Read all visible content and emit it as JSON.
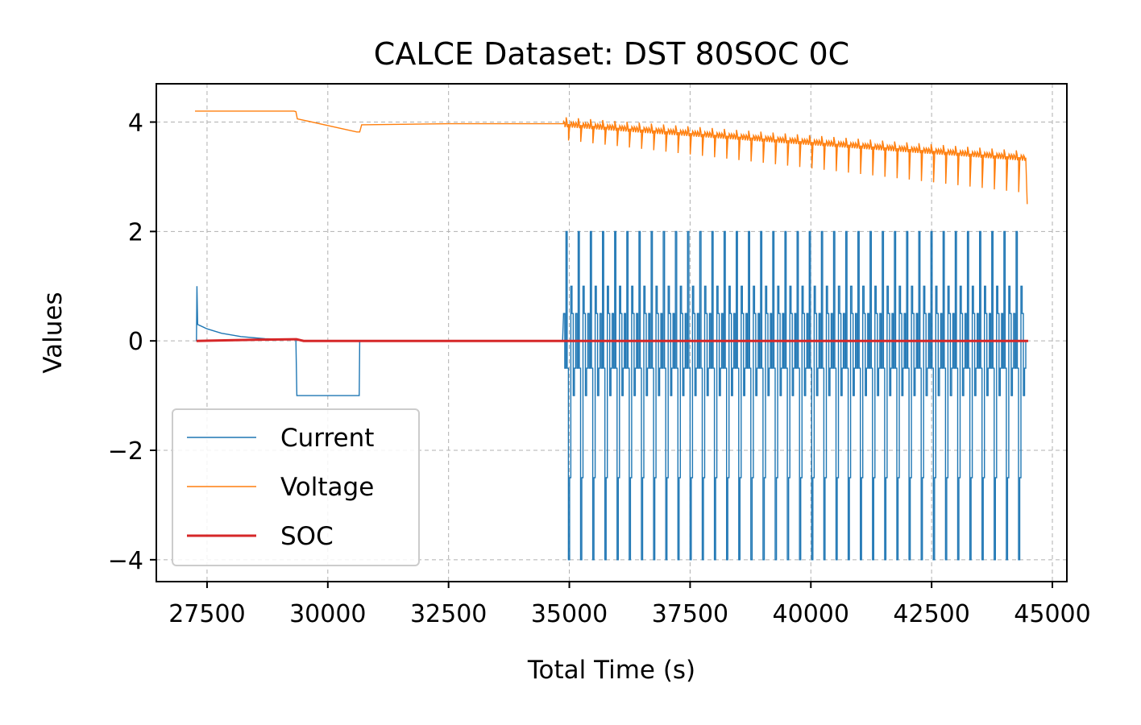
{
  "chart_data": {
    "type": "line",
    "title": "CALCE Dataset: DST 80SOC 0C",
    "xlabel": "Total Time (s)",
    "ylabel": "Values",
    "xlim": [
      26450,
      45300
    ],
    "ylim": [
      -4.3999,
      4.6999
    ],
    "x_ticks": [
      27500,
      30000,
      32500,
      35000,
      37500,
      40000,
      42500,
      45000
    ],
    "x_tick_labels": [
      "27500",
      "30000",
      "32500",
      "35000",
      "37500",
      "40000",
      "42500",
      "45000"
    ],
    "y_ticks": [
      -4,
      -2,
      0,
      2,
      4
    ],
    "y_tick_labels": [
      "−4",
      "−2",
      "0",
      "2",
      "4"
    ],
    "grid": true,
    "legend_position": "lower-left",
    "dst_start": 34880,
    "dst_end": 44450,
    "dst_cycles": 38,
    "series": [
      {
        "name": "Current",
        "color": "#1f77b4",
        "points": [
          [
            27280,
            0
          ],
          [
            27290,
            1.0
          ],
          [
            27305,
            0.3
          ],
          [
            27500,
            0.22
          ],
          [
            27800,
            0.14
          ],
          [
            28200,
            0.08
          ],
          [
            28700,
            0.04
          ],
          [
            29340,
            0.02
          ],
          [
            29360,
            -1.0
          ],
          [
            30650,
            -1.0
          ],
          [
            30660,
            0
          ],
          [
            34860,
            0
          ]
        ],
        "dst_levels": [
          0.5,
          -0.5,
          2.0,
          -0.5,
          -4.0,
          -2.5,
          1.0,
          0.5,
          -1.0,
          -0.5
        ]
      },
      {
        "name": "Voltage",
        "color": "#ff7f0e",
        "points": [
          [
            27250,
            4.2
          ],
          [
            29300,
            4.2
          ],
          [
            29340,
            4.19
          ],
          [
            29370,
            4.06
          ],
          [
            30600,
            3.82
          ],
          [
            30660,
            3.82
          ],
          [
            30700,
            3.95
          ],
          [
            32500,
            3.97
          ],
          [
            34880,
            3.97
          ],
          [
            44450,
            3.35
          ],
          [
            44480,
            2.5
          ]
        ],
        "dst_range": [
          4.1,
          2.65
        ]
      },
      {
        "name": "SOC",
        "color": "#d62728",
        "points": [
          [
            27280,
            0.0
          ],
          [
            28500,
            0.02
          ],
          [
            29350,
            0.03
          ],
          [
            29500,
            0.0
          ],
          [
            44500,
            0.0
          ]
        ]
      }
    ]
  }
}
